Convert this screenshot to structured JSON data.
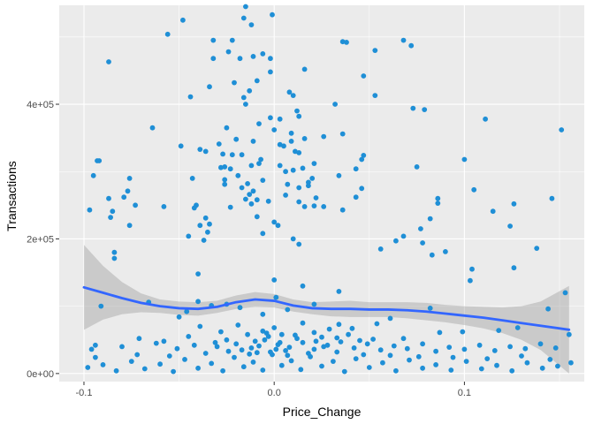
{
  "chart_data": {
    "type": "scatter",
    "xlabel": "Price_Change",
    "ylabel": "Transactions",
    "xlim": [
      -0.113,
      0.163
    ],
    "ylim": [
      -12000,
      547000
    ],
    "x_ticks": [
      {
        "value": -0.1,
        "label": "-0.1"
      },
      {
        "value": 0.0,
        "label": "0.0"
      },
      {
        "value": 0.1,
        "label": "0.1"
      }
    ],
    "y_ticks": [
      {
        "value": 0,
        "label": "0e+00"
      },
      {
        "value": 200000,
        "label": "2e+05"
      },
      {
        "value": 400000,
        "label": "4e+05"
      }
    ],
    "grid": true,
    "panel_background": "#ebebeb",
    "grid_color": "#ffffff",
    "point_color": "#1f8fd6",
    "smooth_color": "#3366ff",
    "ribbon_color": "#999999",
    "points": [
      [
        -0.015,
        545000
      ],
      [
        -0.001,
        533000
      ],
      [
        -0.016,
        528000
      ],
      [
        -0.048,
        525000
      ],
      [
        -0.012,
        518000
      ],
      [
        -0.056,
        504000
      ],
      [
        -0.032,
        495000
      ],
      [
        -0.022,
        495000
      ],
      [
        0.036,
        493000
      ],
      [
        0.038,
        492000
      ],
      [
        0.068,
        495000
      ],
      [
        0.072,
        487000
      ],
      [
        0.053,
        480000
      ],
      [
        -0.024,
        478000
      ],
      [
        -0.006,
        475000
      ],
      [
        -0.011,
        471000
      ],
      [
        -0.002,
        468000
      ],
      [
        -0.018,
        468000
      ],
      [
        -0.032,
        468000
      ],
      [
        -0.087,
        463000
      ],
      [
        0.016,
        452000
      ],
      [
        -0.002,
        448000
      ],
      [
        0.047,
        442000
      ],
      [
        -0.009,
        435000
      ],
      [
        -0.021,
        432000
      ],
      [
        -0.034,
        426000
      ],
      [
        -0.013,
        420000
      ],
      [
        0.008,
        418000
      ],
      [
        0.01,
        413000
      ],
      [
        0.053,
        413000
      ],
      [
        -0.044,
        411000
      ],
      [
        -0.016,
        410000
      ],
      [
        -0.015,
        400000
      ],
      [
        0.032,
        400000
      ],
      [
        0.012,
        390000
      ],
      [
        0.073,
        394000
      ],
      [
        0.079,
        392000
      ],
      [
        0.013,
        382000
      ],
      [
        -0.002,
        380000
      ],
      [
        0.003,
        378000
      ],
      [
        -0.008,
        371000
      ],
      [
        0.111,
        378000
      ],
      [
        -0.025,
        365000
      ],
      [
        -0.064,
        365000
      ],
      [
        0.0,
        362000
      ],
      [
        0.009,
        357000
      ],
      [
        0.036,
        356000
      ],
      [
        0.151,
        362000
      ],
      [
        0.026,
        352000
      ],
      [
        0.016,
        349000
      ],
      [
        -0.011,
        345000
      ],
      [
        -0.02,
        348000
      ],
      [
        0.009,
        345000
      ],
      [
        0.003,
        340000
      ],
      [
        -0.029,
        341000
      ],
      [
        0.005,
        338000
      ],
      [
        -0.049,
        338000
      ],
      [
        -0.039,
        333000
      ],
      [
        0.011,
        330000
      ],
      [
        -0.036,
        330000
      ],
      [
        0.013,
        328000
      ],
      [
        -0.027,
        326000
      ],
      [
        -0.017,
        325000
      ],
      [
        0.047,
        324000
      ],
      [
        -0.022,
        325000
      ],
      [
        0.046,
        318000
      ],
      [
        0.1,
        318000
      ],
      [
        -0.007,
        318000
      ],
      [
        -0.092,
        316000
      ],
      [
        -0.093,
        316000
      ],
      [
        -0.008,
        312000
      ],
      [
        0.021,
        312000
      ],
      [
        0.075,
        307000
      ],
      [
        -0.012,
        309000
      ],
      [
        0.003,
        309000
      ],
      [
        -0.026,
        307000
      ],
      [
        -0.028,
        306000
      ],
      [
        -0.023,
        304000
      ],
      [
        0.015,
        305000
      ],
      [
        0.043,
        304000
      ],
      [
        0.01,
        302000
      ],
      [
        -0.095,
        294000
      ],
      [
        0.006,
        300000
      ],
      [
        -0.019,
        294000
      ],
      [
        -0.026,
        288000
      ],
      [
        0.034,
        294000
      ],
      [
        -0.043,
        290000
      ],
      [
        -0.076,
        290000
      ],
      [
        0.02,
        290000
      ],
      [
        -0.006,
        287000
      ],
      [
        0.018,
        284000
      ],
      [
        -0.014,
        282000
      ],
      [
        -0.026,
        281000
      ],
      [
        0.007,
        281000
      ],
      [
        -0.017,
        276000
      ],
      [
        0.013,
        276000
      ],
      [
        0.018,
        279000
      ],
      [
        -0.077,
        271000
      ],
      [
        0.046,
        275000
      ],
      [
        0.105,
        273000
      ],
      [
        -0.011,
        271000
      ],
      [
        -0.013,
        266000
      ],
      [
        0.006,
        265000
      ],
      [
        -0.079,
        262000
      ],
      [
        0.022,
        261000
      ],
      [
        0.043,
        262000
      ],
      [
        0.086,
        260000
      ],
      [
        0.146,
        260000
      ],
      [
        -0.087,
        260000
      ],
      [
        -0.009,
        258000
      ],
      [
        -0.015,
        259000
      ],
      [
        -0.003,
        256000
      ],
      [
        0.013,
        255000
      ],
      [
        -0.012,
        252000
      ],
      [
        0.016,
        248000
      ],
      [
        0.126,
        252000
      ],
      [
        -0.041,
        250000
      ],
      [
        -0.073,
        250000
      ],
      [
        0.021,
        249000
      ],
      [
        0.086,
        253000
      ],
      [
        0.026,
        248000
      ],
      [
        -0.058,
        248000
      ],
      [
        -0.023,
        247000
      ],
      [
        -0.042,
        246000
      ],
      [
        -0.097,
        243000
      ],
      [
        -0.085,
        241000
      ],
      [
        0.036,
        243000
      ],
      [
        0.115,
        241000
      ],
      [
        -0.009,
        233000
      ],
      [
        0.082,
        230000
      ],
      [
        -0.036,
        231000
      ],
      [
        -0.034,
        222000
      ],
      [
        0.0,
        225000
      ],
      [
        0.124,
        219000
      ],
      [
        -0.086,
        232000
      ],
      [
        0.077,
        215000
      ],
      [
        -0.039,
        220000
      ],
      [
        -0.076,
        220000
      ],
      [
        0.002,
        220000
      ],
      [
        -0.035,
        210000
      ],
      [
        -0.045,
        204000
      ],
      [
        -0.006,
        208000
      ],
      [
        0.068,
        204000
      ],
      [
        -0.037,
        198000
      ],
      [
        0.01,
        200000
      ],
      [
        0.064,
        197000
      ],
      [
        0.013,
        192000
      ],
      [
        0.078,
        194000
      ],
      [
        0.138,
        186000
      ],
      [
        0.056,
        185000
      ],
      [
        0.09,
        181000
      ],
      [
        0.083,
        176000
      ],
      [
        -0.084,
        180000
      ],
      [
        -0.084,
        171000
      ],
      [
        0.104,
        155000
      ],
      [
        0.126,
        157000
      ],
      [
        0.103,
        138000
      ],
      [
        -0.04,
        148000
      ],
      [
        0.0,
        139000
      ],
      [
        0.015,
        130000
      ],
      [
        0.034,
        122000
      ],
      [
        0.153,
        120000
      ],
      [
        -0.04,
        107000
      ],
      [
        -0.025,
        103000
      ],
      [
        0.021,
        103000
      ],
      [
        -0.066,
        106000
      ],
      [
        0.001,
        113000
      ],
      [
        -0.033,
        101000
      ],
      [
        -0.018,
        98000
      ],
      [
        0.007,
        95000
      ],
      [
        0.082,
        97000
      ],
      [
        0.144,
        96000
      ],
      [
        -0.091,
        100000
      ],
      [
        -0.046,
        92000
      ],
      [
        -0.006,
        88000
      ],
      [
        -0.05,
        84000
      ],
      [
        0.061,
        82000
      ],
      [
        0.054,
        74000
      ],
      [
        0.034,
        73000
      ],
      [
        0.128,
        68000
      ],
      [
        0.118,
        64000
      ],
      [
        0.099,
        62000
      ],
      [
        0.155,
        58000
      ],
      [
        -0.003,
        55000
      ],
      [
        0.021,
        61000
      ],
      [
        0.041,
        67000
      ],
      [
        0.087,
        61000
      ],
      [
        -0.071,
        52000
      ],
      [
        -0.058,
        48000
      ],
      [
        -0.01,
        48000
      ],
      [
        -0.096,
        36000
      ],
      [
        -0.094,
        42000
      ],
      [
        -0.08,
        40000
      ],
      [
        -0.062,
        45000
      ],
      [
        -0.051,
        37000
      ],
      [
        -0.042,
        42000
      ],
      [
        -0.03,
        40000
      ],
      [
        -0.02,
        44000
      ],
      [
        -0.012,
        38000
      ],
      [
        -0.005,
        50000
      ],
      [
        0.002,
        43000
      ],
      [
        0.008,
        39000
      ],
      [
        0.015,
        46000
      ],
      [
        0.021,
        36000
      ],
      [
        0.028,
        42000
      ],
      [
        0.035,
        47000
      ],
      [
        0.042,
        38000
      ],
      [
        0.049,
        44000
      ],
      [
        0.056,
        35000
      ],
      [
        0.063,
        41000
      ],
      [
        0.07,
        37000
      ],
      [
        0.078,
        44000
      ],
      [
        0.085,
        33000
      ],
      [
        0.092,
        39000
      ],
      [
        0.1,
        36000
      ],
      [
        0.108,
        42000
      ],
      [
        0.116,
        34000
      ],
      [
        0.124,
        40000
      ],
      [
        0.132,
        37000
      ],
      [
        0.14,
        44000
      ],
      [
        0.148,
        38000
      ],
      [
        0.156,
        16000
      ],
      [
        -0.098,
        9000
      ],
      [
        -0.09,
        13000
      ],
      [
        -0.083,
        4000
      ],
      [
        -0.075,
        18000
      ],
      [
        -0.068,
        7000
      ],
      [
        -0.06,
        14000
      ],
      [
        -0.053,
        3000
      ],
      [
        -0.047,
        21000
      ],
      [
        -0.04,
        8000
      ],
      [
        -0.033,
        15000
      ],
      [
        -0.027,
        4000
      ],
      [
        -0.021,
        24000
      ],
      [
        -0.016,
        10000
      ],
      [
        -0.011,
        17000
      ],
      [
        -0.006,
        5000
      ],
      [
        -0.001,
        28000
      ],
      [
        0.004,
        12000
      ],
      [
        0.009,
        19000
      ],
      [
        0.014,
        6000
      ],
      [
        0.019,
        25000
      ],
      [
        0.025,
        11000
      ],
      [
        0.031,
        18000
      ],
      [
        0.037,
        3000
      ],
      [
        0.043,
        22000
      ],
      [
        0.05,
        9000
      ],
      [
        0.057,
        16000
      ],
      [
        0.064,
        4000
      ],
      [
        0.071,
        20000
      ],
      [
        0.078,
        8000
      ],
      [
        0.085,
        13000
      ],
      [
        0.093,
        5000
      ],
      [
        0.101,
        18000
      ],
      [
        0.109,
        7000
      ],
      [
        0.117,
        12000
      ],
      [
        0.125,
        4000
      ],
      [
        0.133,
        16000
      ],
      [
        0.141,
        8000
      ],
      [
        0.149,
        11000
      ],
      [
        -0.094,
        24000
      ],
      [
        -0.072,
        28000
      ],
      [
        -0.055,
        26000
      ],
      [
        -0.036,
        30000
      ],
      [
        -0.024,
        33000
      ],
      [
        -0.009,
        31000
      ],
      [
        0.006,
        34000
      ],
      [
        0.018,
        30000
      ],
      [
        0.033,
        32000
      ],
      [
        0.047,
        28000
      ],
      [
        0.061,
        27000
      ],
      [
        0.076,
        25000
      ],
      [
        0.094,
        24000
      ],
      [
        0.112,
        22000
      ],
      [
        0.13,
        26000
      ],
      [
        0.145,
        21000
      ],
      [
        -0.045,
        55000
      ],
      [
        -0.028,
        62000
      ],
      [
        -0.014,
        58000
      ],
      [
        0.011,
        57000
      ],
      [
        0.025,
        54000
      ],
      [
        0.039,
        58000
      ],
      [
        0.052,
        51000
      ],
      [
        0.068,
        52000
      ],
      [
        -0.039,
        70000
      ],
      [
        -0.019,
        72000
      ],
      [
        0.0,
        68000
      ],
      [
        0.015,
        75000
      ],
      [
        0.029,
        66000
      ],
      [
        0.045,
        49000
      ],
      [
        -0.004,
        60000
      ],
      [
        0.003,
        46000
      ],
      [
        -0.008,
        41000
      ],
      [
        0.012,
        52000
      ],
      [
        -0.017,
        35000
      ],
      [
        0.022,
        48000
      ],
      [
        -0.002,
        32000
      ],
      [
        0.007,
        27000
      ],
      [
        -0.013,
        29000
      ],
      [
        0.004,
        58000
      ],
      [
        -0.006,
        63000
      ],
      [
        0.001,
        36000
      ],
      [
        -0.025,
        50000
      ],
      [
        0.026,
        40000
      ],
      [
        -0.031,
        46000
      ],
      [
        0.033,
        53000
      ]
    ],
    "smooth": [
      {
        "x": -0.1,
        "y": 128000,
        "lo": 65000,
        "hi": 191000
      },
      {
        "x": -0.09,
        "y": 120000,
        "lo": 80000,
        "hi": 160000
      },
      {
        "x": -0.08,
        "y": 112000,
        "lo": 88000,
        "hi": 136000
      },
      {
        "x": -0.07,
        "y": 105000,
        "lo": 91000,
        "hi": 119000
      },
      {
        "x": -0.06,
        "y": 100000,
        "lo": 90000,
        "hi": 110000
      },
      {
        "x": -0.05,
        "y": 97000,
        "lo": 87000,
        "hi": 107000
      },
      {
        "x": -0.04,
        "y": 96000,
        "lo": 86000,
        "hi": 106000
      },
      {
        "x": -0.03,
        "y": 99000,
        "lo": 90000,
        "hi": 108000
      },
      {
        "x": -0.02,
        "y": 106000,
        "lo": 96000,
        "hi": 116000
      },
      {
        "x": -0.01,
        "y": 110000,
        "lo": 99000,
        "hi": 121000
      },
      {
        "x": 0.0,
        "y": 108000,
        "lo": 98000,
        "hi": 118000
      },
      {
        "x": 0.01,
        "y": 101000,
        "lo": 92000,
        "hi": 110000
      },
      {
        "x": 0.02,
        "y": 97000,
        "lo": 88000,
        "hi": 106000
      },
      {
        "x": 0.03,
        "y": 96000,
        "lo": 85000,
        "hi": 107000
      },
      {
        "x": 0.04,
        "y": 96000,
        "lo": 84000,
        "hi": 108000
      },
      {
        "x": 0.05,
        "y": 95000,
        "lo": 84000,
        "hi": 106000
      },
      {
        "x": 0.06,
        "y": 95000,
        "lo": 84000,
        "hi": 106000
      },
      {
        "x": 0.07,
        "y": 94000,
        "lo": 82000,
        "hi": 106000
      },
      {
        "x": 0.08,
        "y": 92000,
        "lo": 79000,
        "hi": 105000
      },
      {
        "x": 0.09,
        "y": 89000,
        "lo": 76000,
        "hi": 102000
      },
      {
        "x": 0.1,
        "y": 86000,
        "lo": 72000,
        "hi": 100000
      },
      {
        "x": 0.11,
        "y": 83000,
        "lo": 67000,
        "hi": 99000
      },
      {
        "x": 0.12,
        "y": 79000,
        "lo": 60000,
        "hi": 98000
      },
      {
        "x": 0.13,
        "y": 75000,
        "lo": 50000,
        "hi": 100000
      },
      {
        "x": 0.14,
        "y": 71000,
        "lo": 35000,
        "hi": 107000
      },
      {
        "x": 0.155,
        "y": 65000,
        "lo": 0,
        "hi": 130000
      }
    ]
  }
}
